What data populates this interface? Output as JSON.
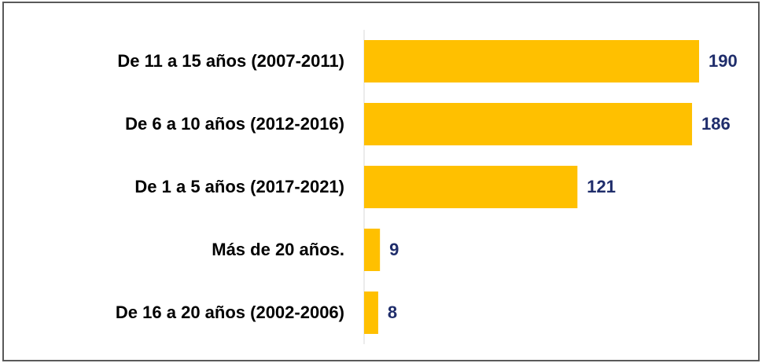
{
  "chart_data": {
    "type": "hbar",
    "categories": [
      "De 11 a 15 años (2007-2011)",
      "De 6 a 10 años (2012-2016)",
      "De 1 a 5 años (2017-2021)",
      "Más de 20 años.",
      "De 16 a 20 años (2002-2006)"
    ],
    "values": [
      190,
      186,
      121,
      9,
      8
    ],
    "color": "#ffc000",
    "label_color": "#1f2d6b"
  }
}
